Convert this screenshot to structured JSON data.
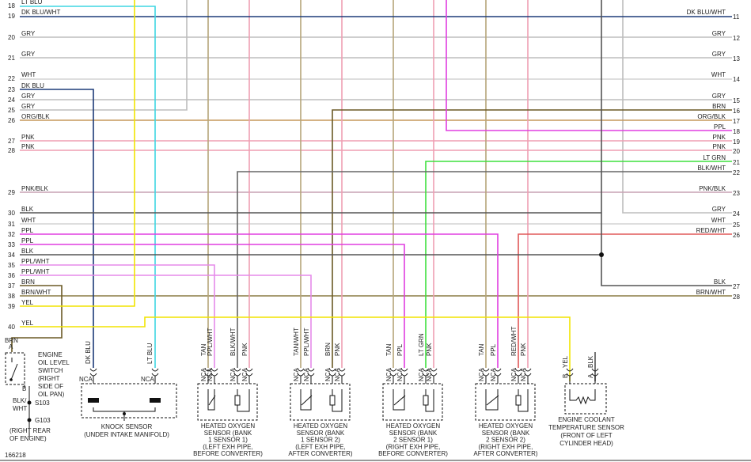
{
  "left_rows": [
    {
      "num": 18,
      "label": "LT BLU"
    },
    {
      "num": 19,
      "label": "DK BLU/WHT"
    },
    {
      "num": 20,
      "label": "GRY"
    },
    {
      "num": 21,
      "label": "GRY"
    },
    {
      "num": 22,
      "label": "WHT"
    },
    {
      "num": 23,
      "label": "DK BLU"
    },
    {
      "num": 24,
      "label": "GRY"
    },
    {
      "num": 25,
      "label": "GRY"
    },
    {
      "num": 26,
      "label": "ORG/BLK"
    },
    {
      "num": 27,
      "label": "PNK"
    },
    {
      "num": 28,
      "label": "PNK"
    },
    {
      "num": 29,
      "label": "PNK/BLK"
    },
    {
      "num": 30,
      "label": "BLK"
    },
    {
      "num": 31,
      "label": "WHT"
    },
    {
      "num": 32,
      "label": "PPL"
    },
    {
      "num": 33,
      "label": "PPL"
    },
    {
      "num": 34,
      "label": "BLK"
    },
    {
      "num": 35,
      "label": "PPL/WHT"
    },
    {
      "num": 36,
      "label": "PPL/WHT"
    },
    {
      "num": 37,
      "label": "BRN"
    },
    {
      "num": 38,
      "label": "BRN/WHT"
    },
    {
      "num": 39,
      "label": "YEL"
    },
    {
      "num": 40,
      "label": "YEL"
    }
  ],
  "right_rows": [
    {
      "num": 11,
      "label": "DK BLU/WHT"
    },
    {
      "num": 12,
      "label": "GRY"
    },
    {
      "num": 13,
      "label": "GRY"
    },
    {
      "num": 14,
      "label": "WHT"
    },
    {
      "num": 15,
      "label": "GRY"
    },
    {
      "num": 16,
      "label": "BRN"
    },
    {
      "num": 17,
      "label": "ORG/BLK"
    },
    {
      "num": 18,
      "label": "PPL"
    },
    {
      "num": 19,
      "label": "PNK"
    },
    {
      "num": 20,
      "label": "PNK"
    },
    {
      "num": 21,
      "label": "LT GRN"
    },
    {
      "num": 22,
      "label": "BLK/WHT"
    },
    {
      "num": 23,
      "label": "PNK/BLK"
    },
    {
      "num": 24,
      "label": "GRY"
    },
    {
      "num": 25,
      "label": "WHT"
    },
    {
      "num": 26,
      "label": "RED/WHT"
    },
    {
      "num": 27,
      "label": "BLK"
    },
    {
      "num": 28,
      "label": "BRN/WHT"
    }
  ],
  "oil_switch": {
    "wire_top": "BRN",
    "pin_top": "A",
    "pin_bottom": "B",
    "title": [
      "ENGINE",
      "OIL LEVEL",
      "SWITCH",
      "(RIGHT",
      "SIDE OF",
      "OIL PAN)"
    ],
    "wire_bottom": [
      "BLK/",
      "WHT"
    ],
    "splice": "S103",
    "ground": "G103",
    "ground_location": [
      "(RIGHT REAR",
      "OF ENGINE)"
    ]
  },
  "knock_sensor": {
    "wires": [
      "DK BLU",
      "LT BLU"
    ],
    "pins": [
      "NCA",
      "NCA"
    ],
    "title": [
      "KNOCK SENSOR",
      "(UNDER INTAKE MANIFOLD)"
    ]
  },
  "oxygen_sensors": [
    {
      "wires": [
        "TAN",
        "PPL/WHT",
        "BLK/WHT",
        "PNK"
      ],
      "pins": [
        "NCA",
        "NCA",
        "NCA",
        "NCA"
      ],
      "title": [
        "HEATED OXYGEN",
        "SENSOR (BANK",
        "1 SENSOR 1)",
        "(LEFT EXH PIPE,",
        "BEFORE CONVERTER)"
      ]
    },
    {
      "wires": [
        "TAN/WHT",
        "PPL/WHT",
        "BRN",
        "PNK"
      ],
      "pins": [
        "NCA",
        "NCA",
        "NCA",
        "NCA"
      ],
      "title": [
        "HEATED OXYGEN",
        "SENSOR (BANK",
        "1 SENSOR 2)",
        "(LEFT EXH PIPE,",
        "AFTER CONVERTER)"
      ]
    },
    {
      "wires": [
        "TAN",
        "PPL",
        "LT GRN",
        "PNK"
      ],
      "pins": [
        "NCA",
        "NCA",
        "NCA",
        "NCA"
      ],
      "title": [
        "HEATED OXYGEN",
        "SENSOR (BANK",
        "2 SENSOR 1)",
        "(RIGHT EXH PIPE,",
        "BEFORE CONVERTER)"
      ]
    },
    {
      "wires": [
        "TAN",
        "PPL",
        "RED/WHT",
        "PNK"
      ],
      "pins": [
        "NCA",
        "NCA",
        "NCA",
        "NCA"
      ],
      "title": [
        "HEATED OXYGEN",
        "SENSOR (BANK",
        "2 SENSOR 2)",
        "(RIGHT EXH PIPE,",
        "AFTER CONVERTER)"
      ]
    }
  ],
  "coolant_sensor": {
    "pins": [
      "B",
      "A"
    ],
    "wires": [
      "YEL",
      "BLK"
    ],
    "title": [
      "ENGINE COOLANT",
      "TEMPERATURE SENSOR",
      "(FRONT OF LEFT",
      "CYLINDER HEAD)"
    ]
  },
  "footer": "166218"
}
